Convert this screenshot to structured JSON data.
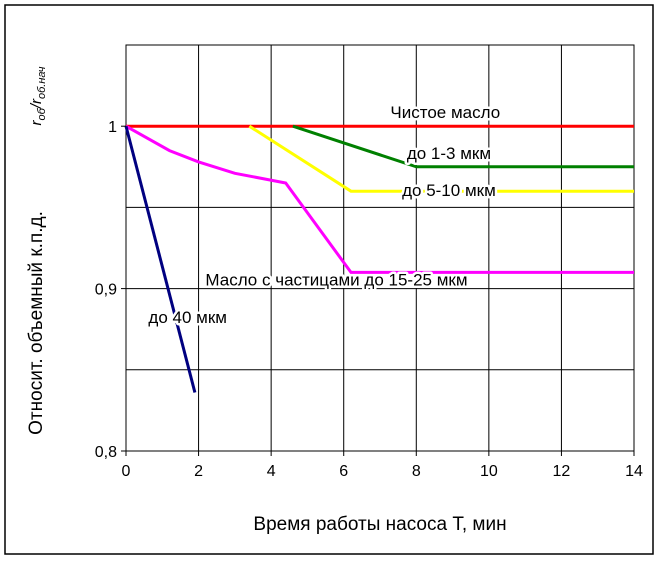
{
  "chart_data": {
    "type": "line",
    "title": "",
    "xlabel": "Время работы насоса Т, мин",
    "ylabel": "Относит. объемный к.п.д.",
    "ylabel_symbol": {
      "base1": "r",
      "sub1": "об",
      "sep": "/",
      "base2": "r",
      "sub2": "об.нач"
    },
    "xlim": [
      0,
      14
    ],
    "ylim": [
      0.8,
      1.05
    ],
    "x_ticks": [
      0,
      2,
      4,
      6,
      8,
      10,
      12,
      14
    ],
    "x_tick_labels": [
      "0",
      "2",
      "4",
      "6",
      "8",
      "10",
      "12",
      "14"
    ],
    "y_ticks": [
      0.8,
      0.9,
      1.0
    ],
    "y_tick_labels": [
      "0,8",
      "0,9",
      "1"
    ],
    "grid": true,
    "series": [
      {
        "name": "Чистое масло",
        "color": "#ff0000",
        "points": [
          [
            0,
            1.0
          ],
          [
            14,
            1.0
          ]
        ]
      },
      {
        "name": "до 1-3 мкм",
        "color": "#008000",
        "points": [
          [
            4.6,
            1.0
          ],
          [
            8,
            0.975
          ],
          [
            14,
            0.975
          ]
        ]
      },
      {
        "name": "до 5-10 мкм",
        "color": "#ffff00",
        "points": [
          [
            3.4,
            1.0
          ],
          [
            6.2,
            0.96
          ],
          [
            14,
            0.96
          ]
        ]
      },
      {
        "name": "Масло с частицами до 15-25 мкм",
        "color": "#ff00ff",
        "points": [
          [
            0,
            1.0
          ],
          [
            1.2,
            0.985
          ],
          [
            2,
            0.978
          ],
          [
            3,
            0.971
          ],
          [
            4.4,
            0.965
          ],
          [
            6.2,
            0.91
          ],
          [
            14,
            0.91
          ]
        ]
      },
      {
        "name": "до 40 мкм",
        "color": "#000080",
        "points": [
          [
            0,
            1.0
          ],
          [
            1.9,
            0.836
          ]
        ]
      }
    ],
    "annotations": [
      {
        "text": "Чистое масло",
        "x": 8.8,
        "y": 1.0
      },
      {
        "text": "до 1-3 мкм",
        "x": 8.9,
        "y": 0.975
      },
      {
        "text": "до 5-10 мкм",
        "x": 8.9,
        "y": 0.952
      },
      {
        "text": "Масло с частицами до 15-25 мкм",
        "x": 5.8,
        "y": 0.897
      },
      {
        "text": "до 40 мкм",
        "x": 1.7,
        "y": 0.874
      }
    ]
  }
}
